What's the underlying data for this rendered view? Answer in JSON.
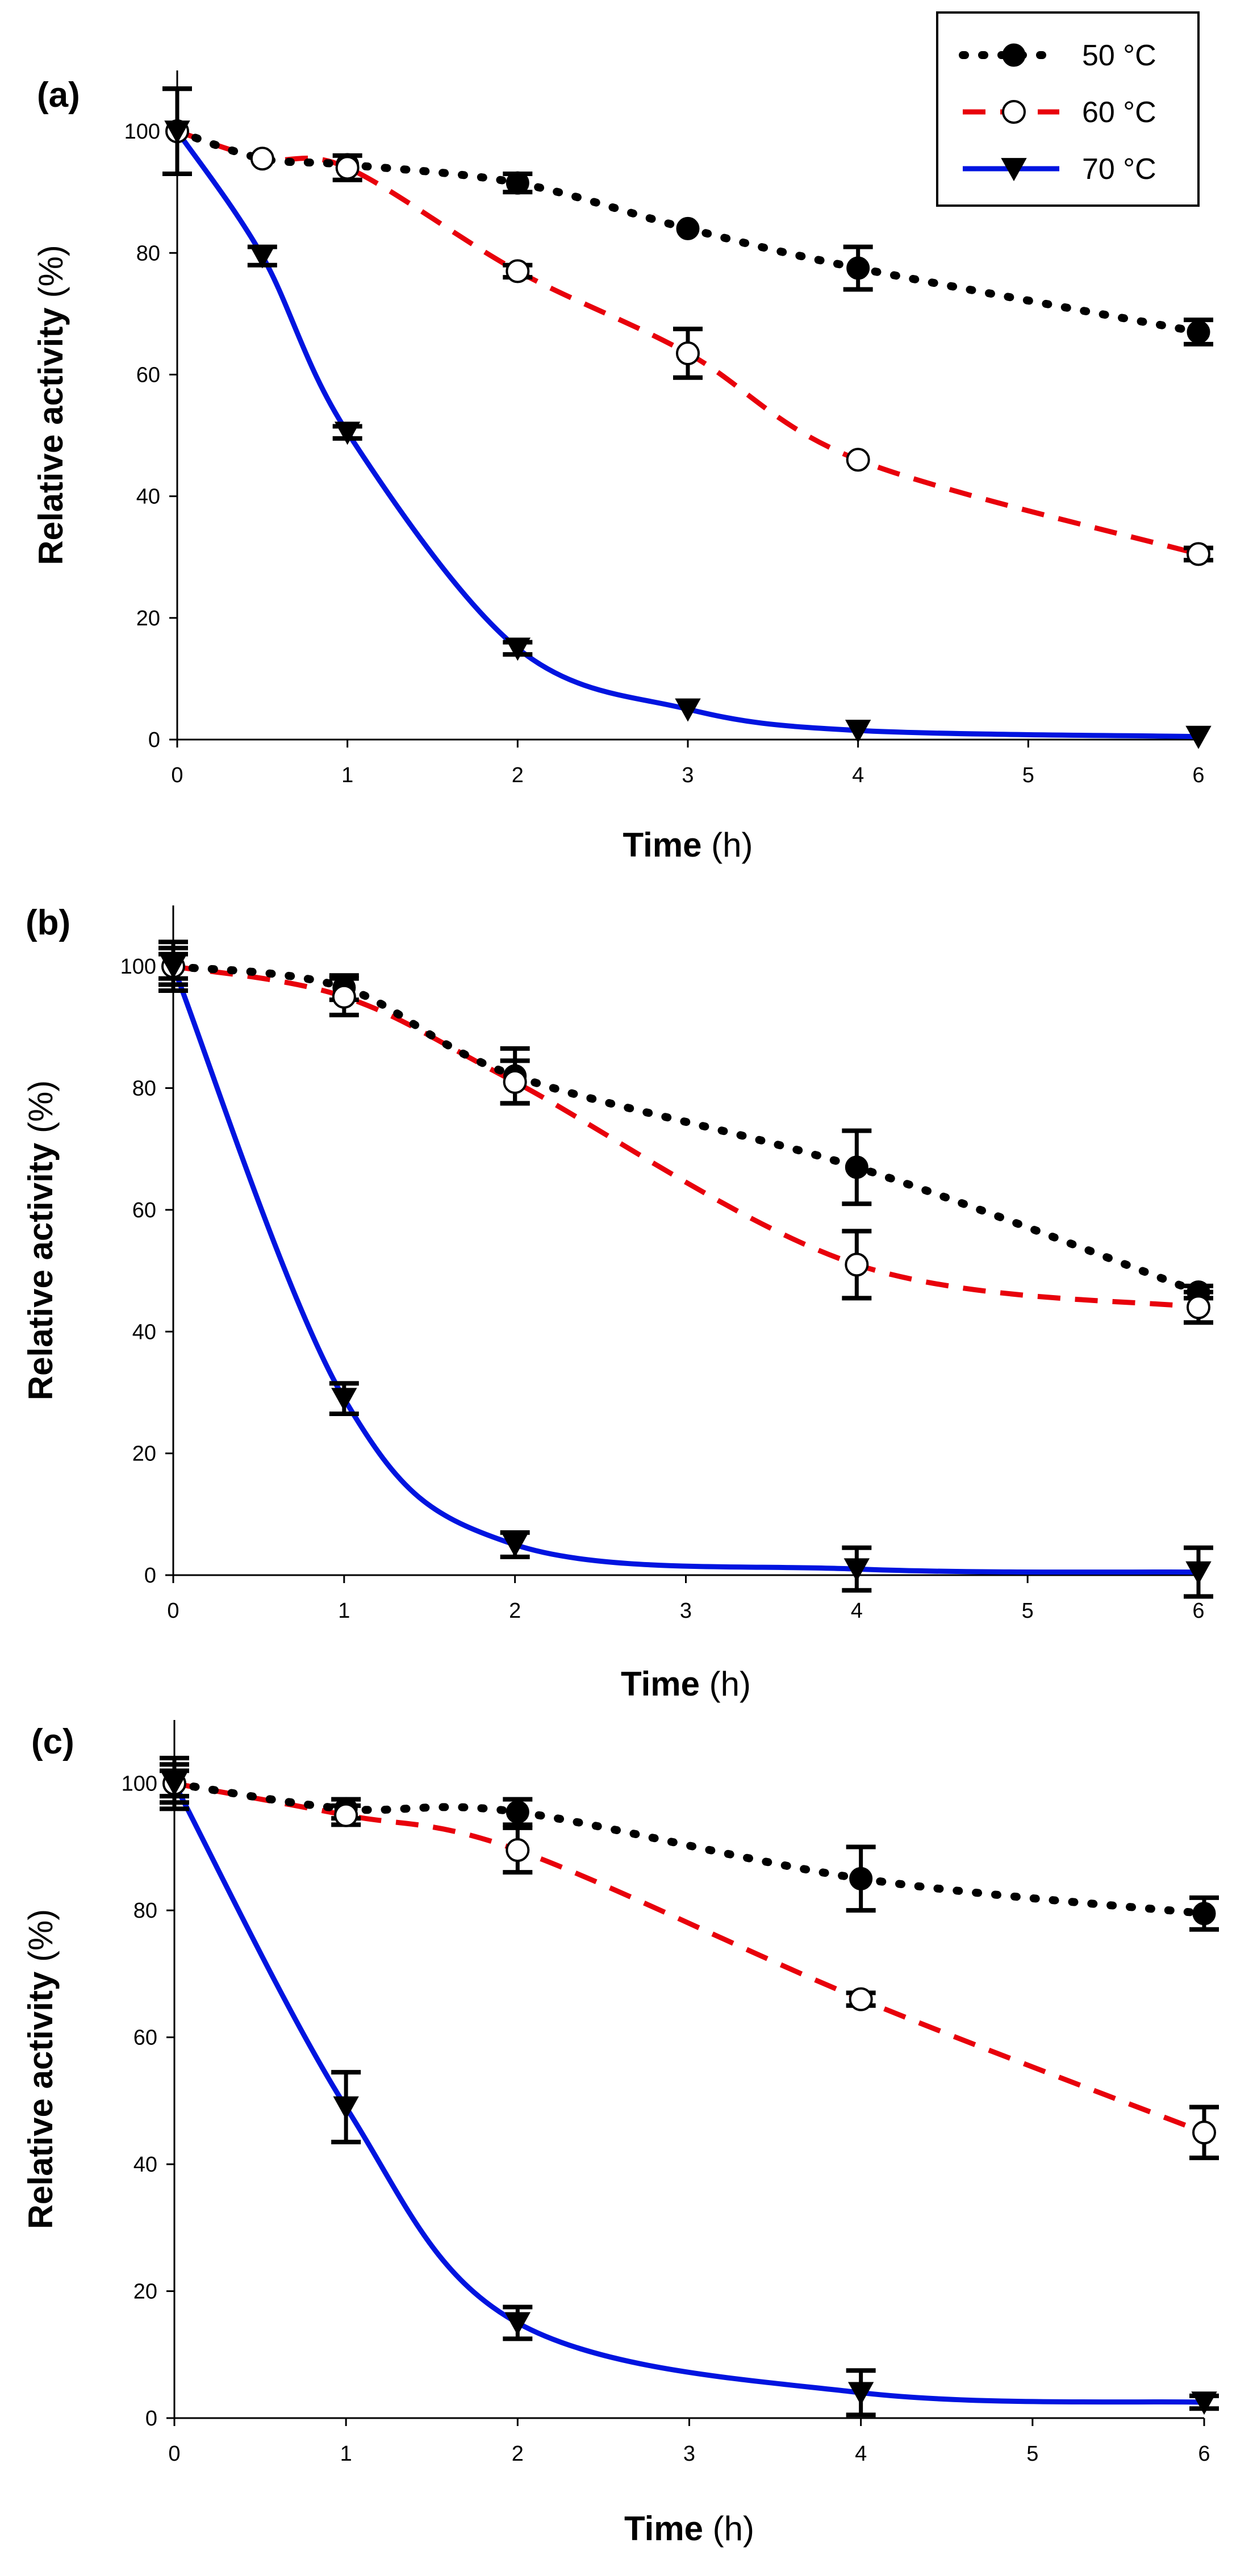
{
  "chart_data": [
    {
      "type": "line",
      "panel_label": "(a)",
      "xlabel_bold": "Time",
      "xlabel_unit": "(h)",
      "ylabel_bold": "Relative activity",
      "ylabel_unit": "(%)",
      "xlim": [
        0,
        6
      ],
      "ylim": [
        0,
        110
      ],
      "xticks": [
        "0",
        "1",
        "2",
        "3",
        "4",
        "5",
        "6"
      ],
      "yticks": [
        "0",
        "20",
        "40",
        "60",
        "80",
        "100"
      ],
      "legend": {
        "position": "top-right",
        "entries": [
          "50 °C",
          "60 °C",
          "70 °C"
        ]
      },
      "series": [
        {
          "name": "50 °C",
          "x": [
            0,
            0.5,
            1,
            2,
            3,
            4,
            6
          ],
          "y": [
            100,
            95.5,
            94.5,
            91.5,
            84,
            77.5,
            67
          ],
          "err": [
            7,
            0,
            0,
            1.5,
            0,
            3.5,
            2
          ]
        },
        {
          "name": "60 °C",
          "x": [
            0,
            0.5,
            1,
            2,
            3,
            4,
            6
          ],
          "y": [
            100,
            95.5,
            94,
            77,
            63.5,
            46,
            30.5
          ],
          "err": [
            7,
            0,
            2,
            1,
            4,
            0,
            1
          ]
        },
        {
          "name": "70 °C",
          "x": [
            0,
            0.5,
            1,
            2,
            3,
            4,
            6
          ],
          "y": [
            100,
            79.5,
            50.5,
            15,
            5,
            1.5,
            0.5
          ],
          "err": [
            7,
            1.5,
            1,
            1,
            0,
            0,
            0
          ]
        }
      ]
    },
    {
      "type": "line",
      "panel_label": "(b)",
      "xlabel_bold": "Time",
      "xlabel_unit": "(h)",
      "ylabel_bold": "Relative activity",
      "ylabel_unit": "(%)",
      "xlim": [
        0,
        6
      ],
      "ylim": [
        0,
        110
      ],
      "xticks": [
        "0",
        "1",
        "2",
        "3",
        "4",
        "5",
        "6"
      ],
      "yticks": [
        "0",
        "20",
        "40",
        "60",
        "80",
        "100"
      ],
      "series": [
        {
          "name": "50 °C",
          "x": [
            0,
            1,
            2,
            4,
            6
          ],
          "y": [
            100,
            96.5,
            82,
            67,
            46.5
          ],
          "err": [
            4,
            2,
            4.5,
            6,
            1
          ]
        },
        {
          "name": "60 °C",
          "x": [
            0,
            1,
            2,
            4,
            6
          ],
          "y": [
            100,
            95,
            81,
            51,
            44
          ],
          "err": [
            2,
            3,
            3.5,
            5.5,
            2.5
          ]
        },
        {
          "name": "70 °C",
          "x": [
            0,
            1,
            2,
            4,
            6
          ],
          "y": [
            100,
            29,
            5,
            1,
            0.5
          ],
          "err": [
            3,
            2.5,
            2,
            3.5,
            4
          ]
        }
      ]
    },
    {
      "type": "line",
      "panel_label": "(c)",
      "xlabel_bold": "Time",
      "xlabel_unit": "(h)",
      "ylabel_bold": "Relative activity",
      "ylabel_unit": "(%)",
      "xlim": [
        0,
        6
      ],
      "ylim": [
        0,
        110
      ],
      "xticks": [
        "0",
        "1",
        "2",
        "3",
        "4",
        "5",
        "6"
      ],
      "yticks": [
        "0",
        "20",
        "40",
        "60",
        "80",
        "100"
      ],
      "series": [
        {
          "name": "50 °C",
          "x": [
            0,
            1,
            2,
            4,
            6
          ],
          "y": [
            100,
            96,
            95.5,
            85,
            79.5
          ],
          "err": [
            4,
            1.5,
            2,
            5,
            2.5
          ]
        },
        {
          "name": "60 °C",
          "x": [
            0,
            1,
            2,
            4,
            6
          ],
          "y": [
            100,
            95,
            89.5,
            66,
            45
          ],
          "err": [
            2,
            1.5,
            3.5,
            1,
            4
          ]
        },
        {
          "name": "70 °C",
          "x": [
            0,
            1,
            2,
            4,
            6
          ],
          "y": [
            100,
            49,
            15,
            4,
            2.5
          ],
          "err": [
            3,
            5.5,
            2.5,
            3.5,
            1
          ]
        }
      ]
    }
  ],
  "styles": {
    "50 °C": {
      "color": "#000000",
      "marker": "filled-circle"
    },
    "60 °C": {
      "color": "#e8000b",
      "marker": "open-circle"
    },
    "70 °C": {
      "color": "#0014e0",
      "marker": "filled-triangle-down"
    }
  }
}
